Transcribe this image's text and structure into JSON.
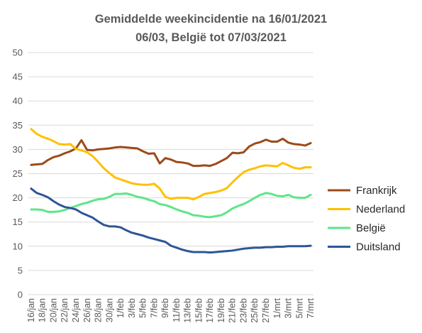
{
  "chart_data": {
    "type": "line",
    "title_line1": "Gemiddelde weekincidentie  na 16/01/2021",
    "title_line2": "06/03, België tot 07/03/2021",
    "xlabel": "",
    "ylabel": "",
    "ylim": [
      0,
      50
    ],
    "yticks": [
      0,
      5,
      10,
      15,
      20,
      25,
      30,
      35,
      40,
      45,
      50
    ],
    "grid": true,
    "legend_position": "right",
    "x": [
      "16/jan",
      "17/jan",
      "18/jan",
      "19/jan",
      "20/jan",
      "21/jan",
      "22/jan",
      "23/jan",
      "24/jan",
      "25/jan",
      "26/jan",
      "27/jan",
      "28/jan",
      "29/jan",
      "30/jan",
      "31/jan",
      "1/feb",
      "2/feb",
      "3/feb",
      "4/feb",
      "5/feb",
      "6/feb",
      "7/feb",
      "8/feb",
      "9/feb",
      "10/feb",
      "11/feb",
      "12/feb",
      "13/feb",
      "14/feb",
      "15/feb",
      "16/feb",
      "17/feb",
      "18/feb",
      "19/feb",
      "20/feb",
      "21/feb",
      "22/feb",
      "23/feb",
      "24/feb",
      "25/feb",
      "26/feb",
      "27/feb",
      "28/feb",
      "1/mrt",
      "2/mrt",
      "3/mrt",
      "4/mrt",
      "5/mrt",
      "6/mrt",
      "7/mrt"
    ],
    "x_tick_labels": [
      "16/jan",
      "18/jan",
      "20/jan",
      "22/jan",
      "24/jan",
      "26/jan",
      "28/jan",
      "30/jan",
      "1/feb",
      "3/feb",
      "5/feb",
      "7/feb",
      "9/feb",
      "11/feb",
      "13/feb",
      "15/feb",
      "17/feb",
      "19/feb",
      "21/feb",
      "23/feb",
      "25/feb",
      "27/feb",
      "1/mrt",
      "3/mrt",
      "5/mrt",
      "7/mrt"
    ],
    "series": [
      {
        "name": "Frankrijk",
        "color": "#9c4a1a",
        "values": [
          26.8,
          26.9,
          27.0,
          27.8,
          28.4,
          28.7,
          29.2,
          29.6,
          30.2,
          31.9,
          29.9,
          29.8,
          30.0,
          30.1,
          30.2,
          30.4,
          30.5,
          30.4,
          30.3,
          30.2,
          29.6,
          29.1,
          29.2,
          27.1,
          28.2,
          27.9,
          27.4,
          27.3,
          27.1,
          26.6,
          26.6,
          26.7,
          26.6,
          27.0,
          27.6,
          28.2,
          29.3,
          29.2,
          29.4,
          30.6,
          31.2,
          31.5,
          32.0,
          31.6,
          31.6,
          32.2,
          31.4,
          31.1,
          31.0,
          30.8,
          31.3
        ]
      },
      {
        "name": "Nederland",
        "color": "#ffc000",
        "values": [
          34.2,
          33.2,
          32.6,
          32.2,
          31.7,
          31.1,
          31.0,
          31.1,
          30.1,
          29.8,
          29.4,
          28.6,
          27.4,
          26.1,
          25.1,
          24.2,
          23.8,
          23.4,
          23.0,
          22.8,
          22.7,
          22.7,
          22.9,
          21.9,
          20.2,
          19.8,
          20.0,
          20.0,
          20.0,
          19.7,
          20.2,
          20.8,
          21.0,
          21.2,
          21.5,
          22.0,
          23.2,
          24.3,
          25.3,
          25.8,
          26.1,
          26.5,
          26.7,
          26.6,
          26.5,
          27.2,
          26.7,
          26.2,
          26.0,
          26.3,
          26.3
        ]
      },
      {
        "name": "België",
        "color": "#5ee58a",
        "values": [
          17.6,
          17.6,
          17.5,
          17.1,
          17.1,
          17.2,
          17.5,
          17.9,
          18.3,
          18.7,
          19.0,
          19.4,
          19.7,
          19.8,
          20.2,
          20.8,
          20.8,
          20.9,
          20.6,
          20.2,
          20.0,
          19.6,
          19.3,
          18.7,
          18.5,
          18.1,
          17.6,
          17.2,
          16.9,
          16.4,
          16.3,
          16.1,
          16.0,
          16.2,
          16.4,
          17.0,
          17.8,
          18.3,
          18.7,
          19.3,
          20.0,
          20.6,
          21.0,
          20.8,
          20.4,
          20.3,
          20.6,
          20.1,
          20.0,
          20.0,
          20.6
        ]
      },
      {
        "name": "Duitsland",
        "color": "#2e5597",
        "values": [
          21.9,
          21.0,
          20.6,
          20.1,
          19.3,
          18.6,
          18.1,
          17.9,
          17.6,
          16.9,
          16.4,
          15.9,
          15.1,
          14.4,
          14.1,
          14.1,
          13.9,
          13.3,
          12.8,
          12.5,
          12.2,
          11.8,
          11.5,
          11.2,
          10.9,
          10.1,
          9.7,
          9.3,
          9.0,
          8.8,
          8.8,
          8.8,
          8.7,
          8.8,
          8.9,
          9.0,
          9.1,
          9.3,
          9.5,
          9.6,
          9.7,
          9.7,
          9.8,
          9.8,
          9.9,
          9.9,
          10.0,
          10.0,
          10.0,
          10.0,
          10.1
        ]
      }
    ]
  }
}
